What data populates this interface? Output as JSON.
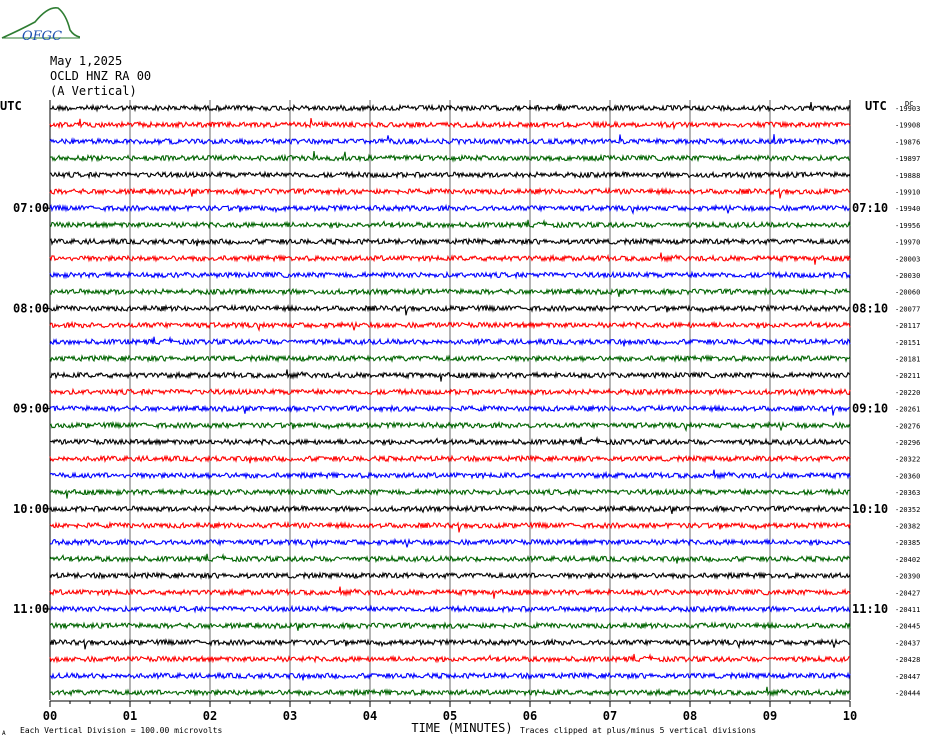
{
  "logo_text": "OFGC",
  "header": {
    "date": "May 1,2025",
    "station": "OCLD HNZ RA 00",
    "component": "(A Vertical)"
  },
  "left_label": "UTC",
  "right_label": "UTC",
  "colors": {
    "trace_cycle": [
      "#000000",
      "#ff0000",
      "#0000ff",
      "#006400"
    ],
    "grid": "#000000",
    "logo": "#2e7d32"
  },
  "chart_data": {
    "type": "line",
    "title": "OCLD HNZ RA 00 (A Vertical)",
    "xlabel": "TIME (MINUTES)",
    "x_ticks": [
      "00",
      "01",
      "02",
      "03",
      "04",
      "05",
      "06",
      "07",
      "08",
      "09",
      "10"
    ],
    "xlim": [
      0,
      10
    ],
    "left_time_labels": [
      {
        "row": 6,
        "label": "07:00"
      },
      {
        "row": 12,
        "label": "08:00"
      },
      {
        "row": 18,
        "label": "09:00"
      },
      {
        "row": 24,
        "label": "10:00"
      },
      {
        "row": 30,
        "label": "11:00"
      }
    ],
    "right_time_labels": [
      {
        "row": 6,
        "label": "07:10"
      },
      {
        "row": 12,
        "label": "08:10"
      },
      {
        "row": 18,
        "label": "09:10"
      },
      {
        "row": 24,
        "label": "10:10"
      },
      {
        "row": 30,
        "label": "11:10"
      }
    ],
    "trace_offsets": [
      -19903,
      -19908,
      -19876,
      -19897,
      -19888,
      -19910,
      -19940,
      -19956,
      -19970,
      -20003,
      -20030,
      -20060,
      -20077,
      -20117,
      -20151,
      -20181,
      -20211,
      -20220,
      -20261,
      -20276,
      -20296,
      -20322,
      -20360,
      -20363,
      -20352,
      -20382,
      -20385,
      -20402,
      -20390,
      -20427,
      -20411,
      -20445,
      -20437,
      -20428,
      -20447,
      -20444
    ],
    "right_top_label": "DC",
    "footer_left": "Each Vertical Division =  100.00 microvolts",
    "footer_right": "Traces clipped at plus/minus 5 vertical divisions",
    "footer_corner": "A"
  }
}
